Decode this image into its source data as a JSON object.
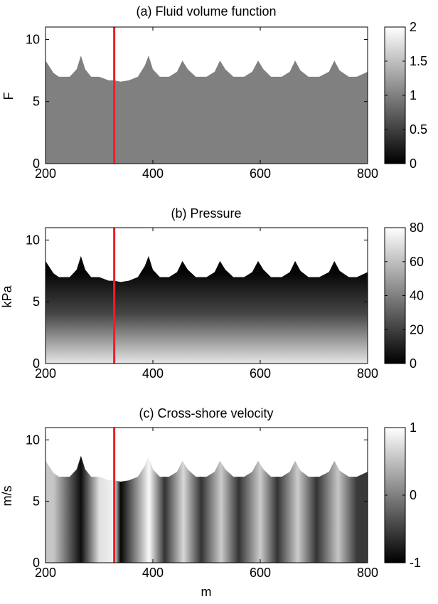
{
  "figure": {
    "xlabel": "m"
  },
  "chart_data": [
    {
      "type": "heatmap",
      "title": "(a) Fluid volume function",
      "xlabel": "",
      "ylabel": "F",
      "xlim": [
        200,
        800
      ],
      "ylim": [
        0,
        11
      ],
      "xticks": [
        "200",
        "400",
        "600",
        "800"
      ],
      "yticks": [
        "0",
        "5",
        "10"
      ],
      "colorbar": {
        "range": [
          0,
          2
        ],
        "ticks": [
          "0",
          "0.5",
          "1",
          "1.5",
          "2"
        ],
        "colormap": "gray"
      },
      "field": "uniform value 1 below the free surface",
      "marker_line": {
        "x": 328,
        "color": "#e8202a"
      },
      "surface": {
        "x": [
          200,
          215,
          225,
          245,
          258,
          266,
          274,
          285,
          300,
          318,
          328,
          340,
          355,
          372,
          385,
          392,
          400,
          413,
          430,
          445,
          455,
          465,
          480,
          500,
          515,
          525,
          535,
          550,
          570,
          585,
          596,
          606,
          620,
          640,
          655,
          665,
          675,
          690,
          710,
          728,
          738,
          748,
          765,
          780,
          790,
          800
        ],
        "y": [
          8.3,
          7.3,
          7.0,
          7.0,
          7.6,
          8.7,
          7.6,
          7.0,
          7.0,
          6.7,
          6.7,
          6.6,
          6.7,
          7.0,
          7.9,
          8.7,
          7.6,
          7.0,
          7.0,
          7.4,
          8.3,
          7.6,
          7.0,
          7.0,
          7.4,
          8.3,
          7.6,
          7.0,
          7.0,
          7.4,
          8.3,
          7.6,
          7.0,
          7.0,
          7.4,
          8.3,
          7.5,
          7.0,
          7.0,
          7.4,
          8.3,
          7.5,
          7.0,
          7.0,
          7.2,
          7.4
        ]
      }
    },
    {
      "type": "heatmap",
      "title": "(b) Pressure",
      "xlabel": "",
      "ylabel": "kPa",
      "xlim": [
        200,
        800
      ],
      "ylim": [
        0,
        11
      ],
      "xticks": [
        "200",
        "400",
        "600",
        "800"
      ],
      "yticks": [
        "0",
        "5",
        "10"
      ],
      "colorbar": {
        "range": [
          0,
          80
        ],
        "ticks": [
          "0",
          "20",
          "40",
          "60",
          "80"
        ],
        "colormap": "gray"
      },
      "field": "hydrostatic, about 0 at the surface rising to about 75 at the bed",
      "marker_line": {
        "x": 328,
        "color": "#e8202a"
      },
      "surface": {
        "x": [
          200,
          215,
          225,
          245,
          258,
          266,
          274,
          285,
          300,
          318,
          328,
          340,
          355,
          372,
          385,
          392,
          400,
          413,
          430,
          445,
          455,
          465,
          480,
          500,
          515,
          525,
          535,
          550,
          570,
          585,
          596,
          606,
          620,
          640,
          655,
          665,
          675,
          690,
          710,
          728,
          738,
          748,
          765,
          780,
          790,
          800
        ],
        "y": [
          8.3,
          7.3,
          7.0,
          7.0,
          7.6,
          8.7,
          7.6,
          7.0,
          7.0,
          6.7,
          6.7,
          6.6,
          6.7,
          7.0,
          7.9,
          8.7,
          7.6,
          7.0,
          7.0,
          7.4,
          8.3,
          7.6,
          7.0,
          7.0,
          7.4,
          8.3,
          7.6,
          7.0,
          7.0,
          7.4,
          8.3,
          7.6,
          7.0,
          7.0,
          7.4,
          8.3,
          7.5,
          7.0,
          7.0,
          7.4,
          8.3,
          7.5,
          7.0,
          7.0,
          7.2,
          7.4
        ]
      }
    },
    {
      "type": "heatmap",
      "title": "(c) Cross-shore velocity",
      "xlabel": "m",
      "ylabel": "m/s",
      "xlim": [
        200,
        800
      ],
      "ylim": [
        0,
        11
      ],
      "xticks": [
        "200",
        "400",
        "600",
        "800"
      ],
      "yticks": [
        "0",
        "5",
        "10"
      ],
      "colorbar": {
        "range": [
          -1,
          1
        ],
        "ticks": [
          "-1",
          "0",
          "1"
        ],
        "colormap": "gray"
      },
      "field": "vertical bands of cross-shore velocity; bright crests near x = 215, 300, 393, 457, 527, 600, 670, 745; dark troughs near x = 266, 340, 422, 490, 560, 632, 705, 780",
      "band_peaks": [
        {
          "x": 215,
          "v": 0.55
        },
        {
          "x": 266,
          "v": -0.9
        },
        {
          "x": 300,
          "v": 0.75
        },
        {
          "x": 328,
          "v": 0.9
        },
        {
          "x": 340,
          "v": -0.95
        },
        {
          "x": 393,
          "v": 0.95
        },
        {
          "x": 422,
          "v": -0.6
        },
        {
          "x": 457,
          "v": 0.7
        },
        {
          "x": 490,
          "v": -0.6
        },
        {
          "x": 527,
          "v": 0.6
        },
        {
          "x": 560,
          "v": -0.6
        },
        {
          "x": 600,
          "v": 0.6
        },
        {
          "x": 632,
          "v": -0.6
        },
        {
          "x": 670,
          "v": 0.6
        },
        {
          "x": 705,
          "v": -0.6
        },
        {
          "x": 745,
          "v": 0.55
        },
        {
          "x": 780,
          "v": -0.55
        }
      ],
      "marker_line": {
        "x": 328,
        "color": "#e8202a"
      },
      "surface": {
        "x": [
          200,
          215,
          225,
          245,
          258,
          266,
          274,
          285,
          300,
          318,
          328,
          340,
          355,
          372,
          385,
          392,
          400,
          413,
          430,
          445,
          455,
          465,
          480,
          500,
          515,
          525,
          535,
          550,
          570,
          585,
          596,
          606,
          620,
          640,
          655,
          665,
          675,
          690,
          710,
          728,
          738,
          748,
          765,
          780,
          790,
          800
        ],
        "y": [
          8.3,
          7.3,
          7.0,
          7.0,
          7.6,
          8.7,
          7.6,
          7.0,
          7.0,
          6.7,
          6.7,
          6.6,
          6.7,
          7.0,
          7.9,
          8.7,
          7.6,
          7.0,
          7.0,
          7.4,
          8.3,
          7.6,
          7.0,
          7.0,
          7.4,
          8.3,
          7.6,
          7.0,
          7.0,
          7.4,
          8.3,
          7.6,
          7.0,
          7.0,
          7.4,
          8.3,
          7.5,
          7.0,
          7.0,
          7.4,
          8.3,
          7.5,
          7.0,
          7.0,
          7.2,
          7.4
        ]
      }
    }
  ]
}
